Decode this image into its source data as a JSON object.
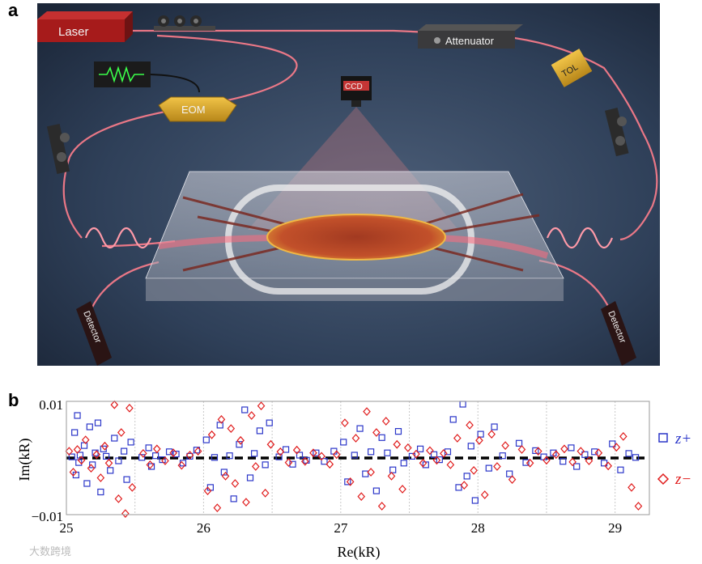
{
  "panels": {
    "a": "a",
    "b": "b"
  },
  "illustration": {
    "labels": {
      "laser": "Laser",
      "attenuator": "Attenuator",
      "eom": "EOM",
      "ccd": "CCD",
      "tol": "TOL",
      "detector_left": "Detector",
      "detector_right": "Detector"
    },
    "colors": {
      "background": "#2b3b52",
      "laser": "#a61b1b",
      "fiber": "#ff6e7f",
      "gold": "#d9a92a"
    }
  },
  "chart_data": {
    "type": "scatter",
    "xlabel": "Re(kR)",
    "ylabel": "Im(kR)",
    "xlim": [
      25,
      29.25
    ],
    "ylim": [
      -0.01,
      0.01
    ],
    "xticks": [
      "25",
      "26",
      "27",
      "28",
      "29"
    ],
    "yticks": [
      "0.01",
      "−0.01"
    ],
    "reference_line": {
      "y": 0,
      "style": "black dashed"
    },
    "grid": "vertical dotted at 25.5, 26, 26.5, 27, 27.5, 28, 28.5, 29",
    "legend_position": "right",
    "series": [
      {
        "name": "z+",
        "marker": "square",
        "color": "#2b36c9",
        "points": [
          [
            25.04,
            0.0002
          ],
          [
            25.06,
            0.0045
          ],
          [
            25.07,
            -0.003
          ],
          [
            25.08,
            0.0075
          ],
          [
            25.09,
            -0.0008
          ],
          [
            25.1,
            0.0005
          ],
          [
            25.13,
            0.0022
          ],
          [
            25.15,
            -0.0045
          ],
          [
            25.17,
            0.0055
          ],
          [
            25.19,
            -0.0012
          ],
          [
            25.21,
            0.0009
          ],
          [
            25.23,
            0.0062
          ],
          [
            25.25,
            -0.006
          ],
          [
            25.27,
            0.0016
          ],
          [
            25.29,
            0.0003
          ],
          [
            25.32,
            -0.0022
          ],
          [
            25.35,
            0.0035
          ],
          [
            25.38,
            -0.0005
          ],
          [
            25.42,
            0.0012
          ],
          [
            25.44,
            -0.0038
          ],
          [
            25.47,
            0.0028
          ],
          [
            25.55,
            0.0001
          ],
          [
            25.6,
            0.0018
          ],
          [
            25.62,
            -0.0015
          ],
          [
            25.65,
            0.0004
          ],
          [
            25.7,
            -0.0003
          ],
          [
            25.75,
            0.0011
          ],
          [
            25.8,
            0.0007
          ],
          [
            25.85,
            -0.0009
          ],
          [
            25.9,
            0.0003
          ],
          [
            25.95,
            0.0014
          ],
          [
            26.02,
            0.0032
          ],
          [
            26.05,
            -0.0052
          ],
          [
            26.08,
            0.0001
          ],
          [
            26.12,
            0.0058
          ],
          [
            26.15,
            -0.0025
          ],
          [
            26.19,
            0.0004
          ],
          [
            26.22,
            -0.0072
          ],
          [
            26.26,
            0.0024
          ],
          [
            26.3,
            0.0085
          ],
          [
            26.34,
            -0.0035
          ],
          [
            26.37,
            0.0008
          ],
          [
            26.41,
            0.0048
          ],
          [
            26.45,
            -0.0012
          ],
          [
            26.48,
            0.0062
          ],
          [
            26.55,
            0.0002
          ],
          [
            26.6,
            0.0015
          ],
          [
            26.65,
            -0.0011
          ],
          [
            26.7,
            0.0005
          ],
          [
            26.75,
            -0.0004
          ],
          [
            26.82,
            0.0009
          ],
          [
            26.88,
            -0.0006
          ],
          [
            26.95,
            0.0012
          ],
          [
            27.02,
            0.0028
          ],
          [
            27.05,
            -0.0042
          ],
          [
            27.1,
            0.0005
          ],
          [
            27.14,
            0.0052
          ],
          [
            27.18,
            -0.0028
          ],
          [
            27.22,
            0.0011
          ],
          [
            27.26,
            -0.0058
          ],
          [
            27.3,
            0.0036
          ],
          [
            27.34,
            0.0009
          ],
          [
            27.38,
            -0.0021
          ],
          [
            27.42,
            0.0047
          ],
          [
            27.46,
            -0.0009
          ],
          [
            27.52,
            0.0003
          ],
          [
            27.58,
            0.0016
          ],
          [
            27.62,
            -0.0012
          ],
          [
            27.68,
            0.0006
          ],
          [
            27.72,
            -0.0003
          ],
          [
            27.78,
            0.0011
          ],
          [
            27.82,
            0.0068
          ],
          [
            27.86,
            -0.0052
          ],
          [
            27.89,
            0.0095
          ],
          [
            27.92,
            -0.0032
          ],
          [
            27.95,
            0.0021
          ],
          [
            27.98,
            -0.0075
          ],
          [
            28.02,
            0.0042
          ],
          [
            28.08,
            -0.0018
          ],
          [
            28.12,
            0.0055
          ],
          [
            28.18,
            0.0004
          ],
          [
            28.23,
            -0.0028
          ],
          [
            28.3,
            0.0026
          ],
          [
            28.35,
            -0.0008
          ],
          [
            28.42,
            0.0013
          ],
          [
            28.48,
            0.0002
          ],
          [
            28.55,
            0.0009
          ],
          [
            28.62,
            -0.0006
          ],
          [
            28.68,
            0.0018
          ],
          [
            28.72,
            -0.0015
          ],
          [
            28.78,
            0.0006
          ],
          [
            28.85,
            0.0011
          ],
          [
            28.92,
            -0.0009
          ],
          [
            28.98,
            0.0025
          ],
          [
            29.04,
            -0.0021
          ],
          [
            29.1,
            0.0008
          ],
          [
            29.15,
            0.0001
          ]
        ]
      },
      {
        "name": "z−",
        "marker": "diamond",
        "color": "#e01b1b",
        "points": [
          [
            25.02,
            0.0012
          ],
          [
            25.05,
            -0.0025
          ],
          [
            25.08,
            0.0015
          ],
          [
            25.11,
            -0.0004
          ],
          [
            25.14,
            0.0032
          ],
          [
            25.18,
            -0.0018
          ],
          [
            25.22,
            0.0006
          ],
          [
            25.25,
            -0.0035
          ],
          [
            25.28,
            0.0021
          ],
          [
            25.31,
            -0.0009
          ],
          [
            25.35,
            0.0094
          ],
          [
            25.38,
            -0.0072
          ],
          [
            25.4,
            0.0045
          ],
          [
            25.43,
            -0.0098
          ],
          [
            25.46,
            0.0088
          ],
          [
            25.48,
            -0.0052
          ],
          [
            25.56,
            0.0008
          ],
          [
            25.61,
            -0.0012
          ],
          [
            25.66,
            0.0016
          ],
          [
            25.72,
            -0.0005
          ],
          [
            25.78,
            0.0009
          ],
          [
            25.84,
            -0.0013
          ],
          [
            25.9,
            0.0005
          ],
          [
            25.96,
            0.0012
          ],
          [
            26.03,
            -0.0058
          ],
          [
            26.06,
            0.0041
          ],
          [
            26.1,
            -0.0088
          ],
          [
            26.13,
            0.0068
          ],
          [
            26.16,
            -0.0032
          ],
          [
            26.2,
            0.0052
          ],
          [
            26.23,
            -0.0045
          ],
          [
            26.27,
            0.0031
          ],
          [
            26.31,
            -0.0078
          ],
          [
            26.35,
            0.0075
          ],
          [
            26.38,
            -0.0015
          ],
          [
            26.42,
            0.0092
          ],
          [
            26.45,
            -0.0062
          ],
          [
            26.49,
            0.0024
          ],
          [
            26.56,
            0.0011
          ],
          [
            26.62,
            -0.0008
          ],
          [
            26.68,
            0.0014
          ],
          [
            26.74,
            -0.0006
          ],
          [
            26.8,
            0.0009
          ],
          [
            26.86,
            0.0003
          ],
          [
            26.92,
            -0.0011
          ],
          [
            26.97,
            0.0006
          ],
          [
            27.03,
            0.0062
          ],
          [
            27.07,
            -0.0042
          ],
          [
            27.11,
            0.0035
          ],
          [
            27.15,
            -0.0068
          ],
          [
            27.19,
            0.0082
          ],
          [
            27.22,
            -0.0025
          ],
          [
            27.26,
            0.0045
          ],
          [
            27.3,
            -0.0085
          ],
          [
            27.33,
            0.0065
          ],
          [
            27.37,
            -0.0032
          ],
          [
            27.41,
            0.0024
          ],
          [
            27.45,
            -0.0055
          ],
          [
            27.49,
            0.0018
          ],
          [
            27.55,
            0.0007
          ],
          [
            27.6,
            -0.0009
          ],
          [
            27.65,
            0.0013
          ],
          [
            27.7,
            -0.0004
          ],
          [
            27.75,
            0.0008
          ],
          [
            27.8,
            -0.0012
          ],
          [
            27.85,
            0.0035
          ],
          [
            27.9,
            -0.0048
          ],
          [
            27.94,
            0.0058
          ],
          [
            27.97,
            -0.0022
          ],
          [
            28.01,
            0.0031
          ],
          [
            28.05,
            -0.0065
          ],
          [
            28.1,
            0.0042
          ],
          [
            28.14,
            -0.0015
          ],
          [
            28.2,
            0.0022
          ],
          [
            28.25,
            -0.0038
          ],
          [
            28.32,
            0.0015
          ],
          [
            28.38,
            -0.0009
          ],
          [
            28.44,
            0.0012
          ],
          [
            28.5,
            -0.0004
          ],
          [
            28.57,
            0.0006
          ],
          [
            28.63,
            0.0016
          ],
          [
            28.69,
            -0.0007
          ],
          [
            28.75,
            0.0012
          ],
          [
            28.81,
            -0.0005
          ],
          [
            28.88,
            0.0009
          ],
          [
            28.95,
            -0.0014
          ],
          [
            29.01,
            0.0019
          ],
          [
            29.06,
            0.0038
          ],
          [
            29.12,
            -0.0052
          ],
          [
            29.17,
            -0.0085
          ]
        ]
      }
    ]
  },
  "watermark": "大数跨境"
}
